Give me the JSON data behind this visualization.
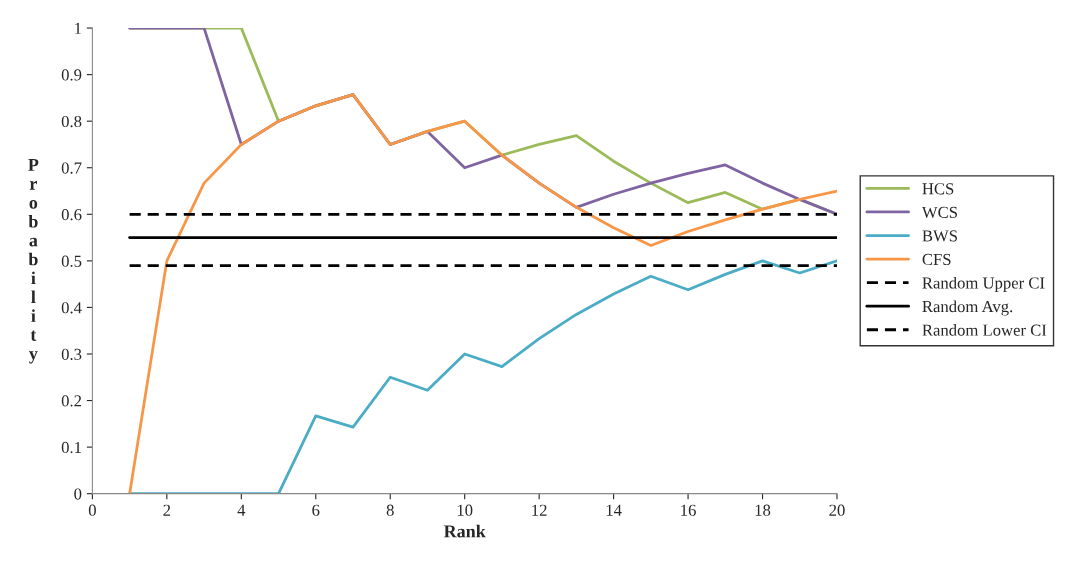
{
  "chart_data": {
    "type": "line",
    "xlabel": "Rank",
    "ylabel": "Probability",
    "x": [
      1,
      2,
      3,
      4,
      5,
      6,
      7,
      8,
      9,
      10,
      11,
      12,
      13,
      14,
      15,
      16,
      17,
      18,
      19,
      20
    ],
    "xlim": [
      0,
      20
    ],
    "xticks": [
      0,
      2,
      4,
      6,
      8,
      10,
      12,
      14,
      16,
      18,
      20
    ],
    "ylim": [
      0,
      1
    ],
    "yticks": [
      0,
      0.1,
      0.2,
      0.3,
      0.4,
      0.5,
      0.6,
      0.7,
      0.8,
      0.9,
      1
    ],
    "grid": false,
    "legend": "right",
    "marker": "none",
    "series": [
      {
        "name": "HCS",
        "color": "#9bbb59",
        "values": [
          1,
          1,
          1,
          1,
          0.8,
          0.833,
          0.857,
          0.75,
          0.778,
          0.8,
          0.727,
          0.75,
          0.769,
          0.714,
          0.667,
          0.625,
          0.647,
          0.611,
          0.632,
          0.6
        ]
      },
      {
        "name": "WCS",
        "color": "#8064a2",
        "values": [
          1,
          1,
          1,
          0.75,
          0.8,
          0.833,
          0.857,
          0.75,
          0.778,
          0.7,
          0.727,
          0.667,
          0.615,
          0.643,
          0.667,
          0.688,
          0.706,
          0.667,
          0.632,
          0.6
        ]
      },
      {
        "name": "BWS",
        "color": "#4bacc6",
        "values": [
          0,
          0,
          0,
          0,
          0,
          0.167,
          0.143,
          0.25,
          0.222,
          0.3,
          0.273,
          0.333,
          0.385,
          0.429,
          0.467,
          0.438,
          0.471,
          0.5,
          0.474,
          0.5
        ]
      },
      {
        "name": "CFS",
        "color": "#f79646",
        "values": [
          0,
          0.5,
          0.667,
          0.75,
          0.8,
          0.833,
          0.857,
          0.75,
          0.778,
          0.8,
          0.727,
          0.667,
          0.615,
          0.571,
          0.533,
          0.563,
          0.588,
          0.611,
          0.632,
          0.65
        ]
      },
      {
        "name": "Random Upper CI",
        "color": "#000000",
        "line_style": "dashed",
        "values": [
          0.6,
          0.6,
          0.6,
          0.6,
          0.6,
          0.6,
          0.6,
          0.6,
          0.6,
          0.6,
          0.6,
          0.6,
          0.6,
          0.6,
          0.6,
          0.6,
          0.6,
          0.6,
          0.6,
          0.6
        ]
      },
      {
        "name": "Random Avg.",
        "color": "#000000",
        "line_style": "solid",
        "values": [
          0.55,
          0.55,
          0.55,
          0.55,
          0.55,
          0.55,
          0.55,
          0.55,
          0.55,
          0.55,
          0.55,
          0.55,
          0.55,
          0.55,
          0.55,
          0.55,
          0.55,
          0.55,
          0.55,
          0.55
        ]
      },
      {
        "name": "Random Lower CI",
        "color": "#000000",
        "line_style": "dashed",
        "values": [
          0.49,
          0.49,
          0.49,
          0.49,
          0.49,
          0.49,
          0.49,
          0.49,
          0.49,
          0.49,
          0.49,
          0.49,
          0.49,
          0.49,
          0.49,
          0.49,
          0.49,
          0.49,
          0.49,
          0.49
        ]
      }
    ]
  }
}
